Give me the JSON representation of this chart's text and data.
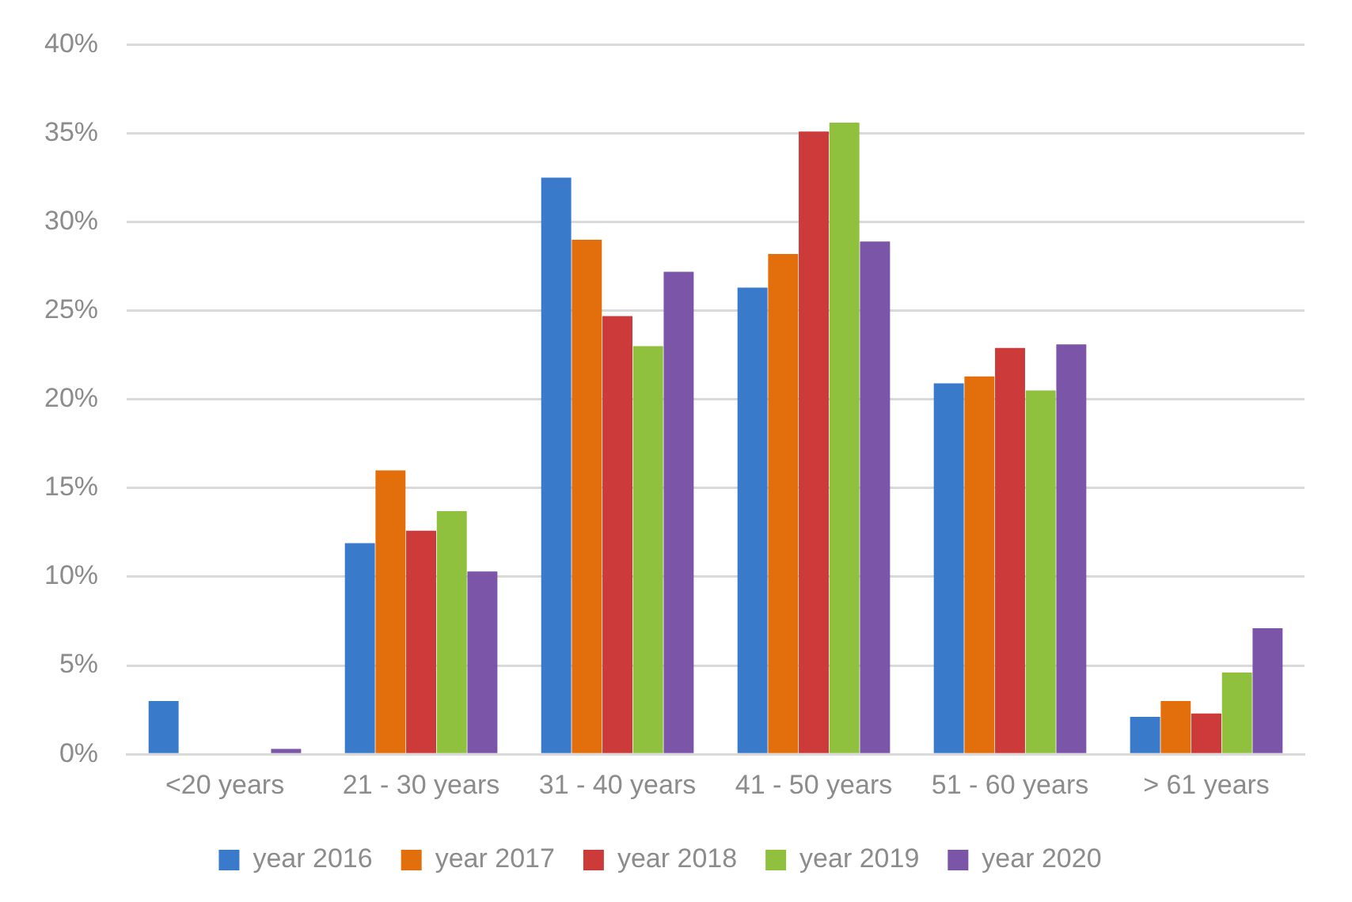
{
  "chart_data": {
    "type": "bar",
    "categories": [
      "<20 years",
      "21 - 30 years",
      "31 - 40 years",
      "41 - 50 years",
      "51 - 60 years",
      "> 61 years"
    ],
    "series": [
      {
        "name": "year 2016",
        "color": "#3a7acb",
        "values": [
          3.0,
          11.9,
          32.5,
          26.3,
          20.9,
          2.1
        ]
      },
      {
        "name": "year 2017",
        "color": "#e26f0c",
        "values": [
          0,
          16.0,
          29.0,
          28.2,
          21.3,
          3.0
        ]
      },
      {
        "name": "year 2018",
        "color": "#cc3a3a",
        "values": [
          0,
          12.6,
          24.7,
          35.1,
          22.9,
          2.3
        ]
      },
      {
        "name": "year 2019",
        "color": "#8fc03e",
        "values": [
          0,
          13.7,
          23.0,
          35.6,
          20.5,
          4.6
        ]
      },
      {
        "name": "year 2020",
        "color": "#7a55a8",
        "values": [
          0.3,
          10.3,
          27.2,
          28.9,
          23.1,
          7.1
        ]
      }
    ],
    "ylim": [
      0,
      40
    ],
    "yticks": [
      {
        "value": 0,
        "label": "0%"
      },
      {
        "value": 5,
        "label": "5%"
      },
      {
        "value": 10,
        "label": "10%"
      },
      {
        "value": 15,
        "label": "15%"
      },
      {
        "value": 20,
        "label": "20%"
      },
      {
        "value": 25,
        "label": "25%"
      },
      {
        "value": 30,
        "label": "30%"
      },
      {
        "value": 35,
        "label": "35%"
      },
      {
        "value": 40,
        "label": "40%"
      }
    ],
    "grid": "y",
    "legend": "bottom"
  }
}
